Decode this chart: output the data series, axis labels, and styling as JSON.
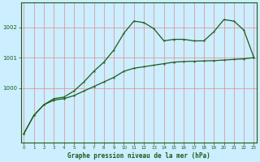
{
  "title": "Graphe pression niveau de la mer (hPa)",
  "bg_color": "#cceeff",
  "line_color": "#1a5c1a",
  "grid_color": "#e08080",
  "x_ticks": [
    0,
    1,
    2,
    3,
    4,
    5,
    6,
    7,
    8,
    9,
    10,
    11,
    12,
    13,
    14,
    15,
    16,
    17,
    18,
    19,
    20,
    21,
    22,
    23
  ],
  "ylim": [
    998.2,
    1002.8
  ],
  "yticks": [
    1000,
    1001,
    1002
  ],
  "series1_x": [
    0,
    1,
    2,
    3,
    4,
    5,
    6,
    7,
    8,
    9,
    10,
    11,
    12,
    13,
    14,
    15,
    16,
    17,
    18,
    19,
    20,
    21,
    22,
    23
  ],
  "series1_y": [
    998.5,
    999.1,
    999.45,
    999.6,
    999.65,
    999.75,
    999.9,
    1000.05,
    1000.2,
    1000.35,
    1000.55,
    1000.65,
    1000.7,
    1000.75,
    1000.8,
    1000.85,
    1000.87,
    1000.88,
    1000.89,
    1000.9,
    1000.92,
    1000.94,
    1000.96,
    1001.0
  ],
  "series2_x": [
    0,
    1,
    2,
    3,
    4,
    5,
    6,
    7,
    8,
    9,
    10,
    11,
    12,
    13,
    14,
    15,
    16,
    17,
    18,
    19,
    20,
    21,
    22,
    23
  ],
  "series2_y": [
    998.5,
    999.1,
    999.45,
    999.65,
    999.7,
    999.9,
    1000.2,
    1000.55,
    1000.85,
    1001.25,
    1001.8,
    1002.2,
    1002.15,
    1001.95,
    1001.55,
    1001.6,
    1001.6,
    1001.55,
    1001.55,
    1001.85,
    1002.25,
    1002.2,
    1001.9,
    1001.0
  ]
}
